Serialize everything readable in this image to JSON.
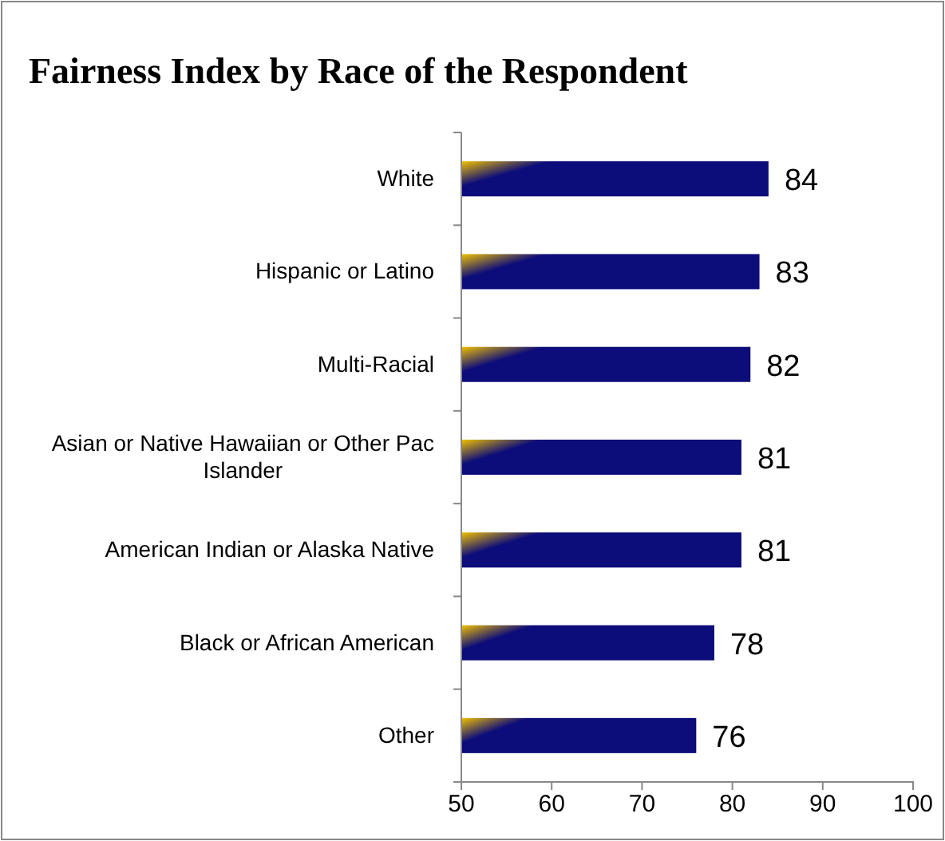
{
  "chart_data": {
    "type": "bar",
    "orientation": "horizontal",
    "title": "Fairness Index by Race of the Respondent",
    "categories": [
      "White",
      "Hispanic or Latino",
      "Multi-Racial",
      "Asian or Native Hawaiian or Other Pac Islander",
      "American Indian or Alaska Native",
      "Black or African American",
      "Other"
    ],
    "values": [
      84,
      83,
      82,
      81,
      81,
      78,
      76
    ],
    "color": "#0c0c7a",
    "xlim": [
      50,
      100
    ],
    "xticks": [
      50,
      60,
      70,
      80,
      90,
      100
    ],
    "data_labels": true
  }
}
